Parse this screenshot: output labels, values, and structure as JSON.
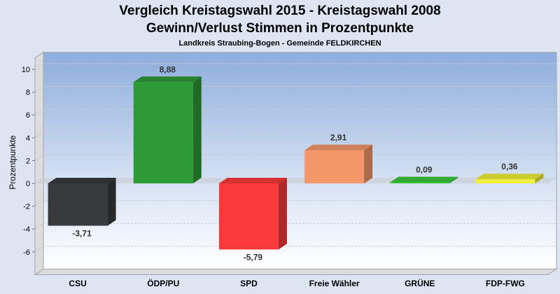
{
  "chart_data": {
    "type": "bar",
    "title": "Vergleich Kreistagswahl 2015 - Kreistagswahl 2008",
    "subtitle": "Gewinn/Verlust Stimmen in Prozentpunkte",
    "caption": "Landkreis Straubing-Bogen - Gemeinde FELDKIRCHEN",
    "ylabel": "Prozentpunkte",
    "xlabel": "",
    "ylim": [
      -8,
      11
    ],
    "yticks": [
      10,
      8,
      6,
      4,
      2,
      0,
      -2,
      -4,
      -6
    ],
    "grid": true,
    "categories": [
      "CSU",
      "ÖDP/PU",
      "SPD",
      "Freie Wähler",
      "GRÜNE",
      "FDP-FWG"
    ],
    "values": [
      -3.71,
      8.88,
      -5.79,
      2.91,
      0.09,
      0.36
    ],
    "labels": [
      "-3,71",
      "8,88",
      "-5,79",
      "2,91",
      "0,09",
      "0,36"
    ],
    "colors": [
      "#393a3e",
      "#2e9a36",
      "#fa3a3a",
      "#f4986a",
      "#3cc83c",
      "#f0f03a"
    ]
  }
}
